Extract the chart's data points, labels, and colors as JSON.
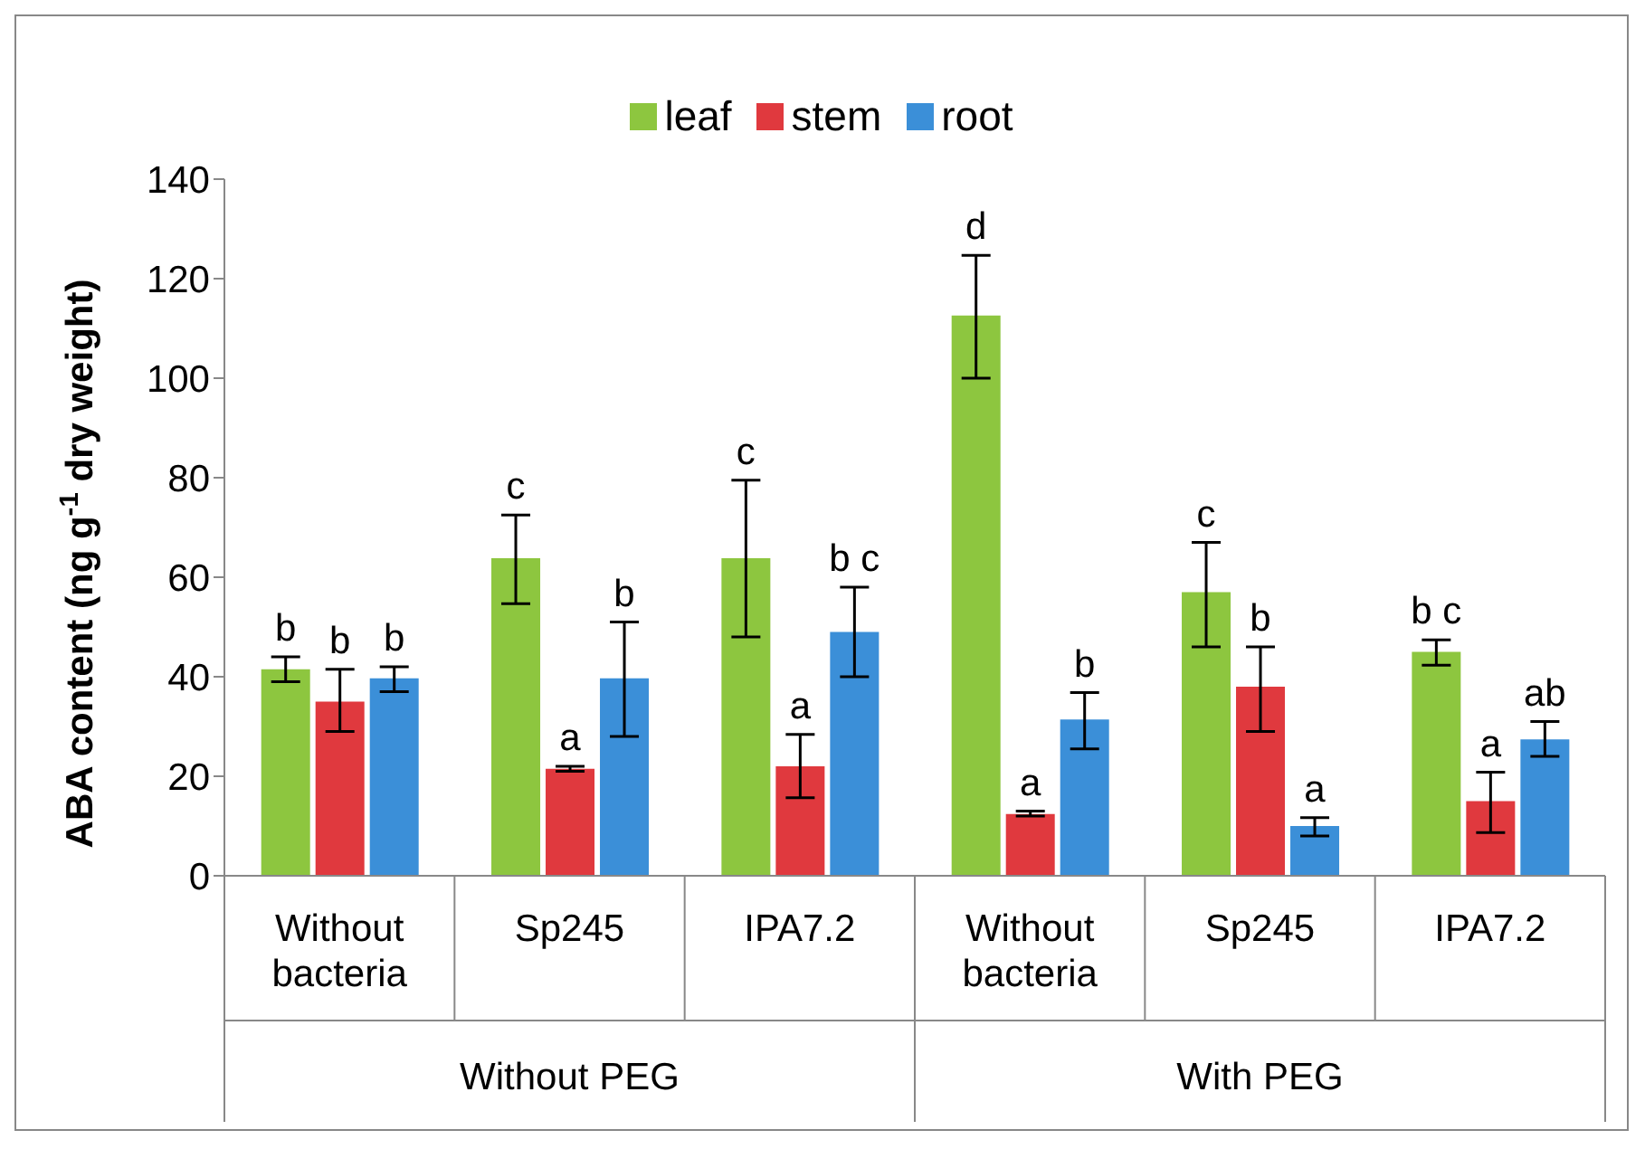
{
  "chart_data": {
    "type": "bar",
    "ylabel": "ABA content (ng  g$^{-1}$ dry weight)",
    "categories": [
      "Without bacteria",
      "Sp245",
      "IPA7.2",
      "Without bacteria",
      "Sp245",
      "IPA7.2"
    ],
    "series": [
      {
        "name": "leaf",
        "color": "#8dc63f",
        "values": [
          41.5,
          63.8,
          63.8,
          112.6,
          57,
          45
        ],
        "errors": [
          [
            39,
            44
          ],
          [
            54.7,
            72.5
          ],
          [
            48,
            79.5
          ],
          [
            100,
            124.7
          ],
          [
            46,
            67
          ],
          [
            42.3,
            47.4
          ]
        ]
      },
      {
        "name": "stem",
        "color": "#e0393e",
        "values": [
          35,
          21.5,
          22,
          12.4,
          38,
          15
        ],
        "errors": [
          [
            29,
            41.5
          ],
          [
            21,
            22
          ],
          [
            15.7,
            28.4
          ],
          [
            12,
            13
          ],
          [
            29,
            46
          ],
          [
            8.7,
            20.8
          ]
        ]
      },
      {
        "name": "root",
        "color": "#3b8fd8",
        "values": [
          39.7,
          39.7,
          49,
          31.4,
          10,
          27.4
        ],
        "errors": [
          [
            37,
            42
          ],
          [
            28,
            51
          ],
          [
            40,
            58
          ],
          [
            25.5,
            36.8
          ],
          [
            8,
            11.7
          ],
          [
            24,
            31
          ]
        ]
      }
    ],
    "annotations": [
      "b",
      "b",
      "b",
      "c",
      "a",
      "b",
      "c",
      "a",
      "b c",
      "d",
      "a",
      "b",
      "c",
      "b",
      "a",
      "b c",
      "a",
      "ab",
      "Without PEG",
      "With PEG"
    ],
    "ylim": [
      0,
      140
    ],
    "yticks": [
      0,
      20,
      40,
      60,
      80,
      100,
      120,
      140
    ],
    "legend": "top"
  }
}
